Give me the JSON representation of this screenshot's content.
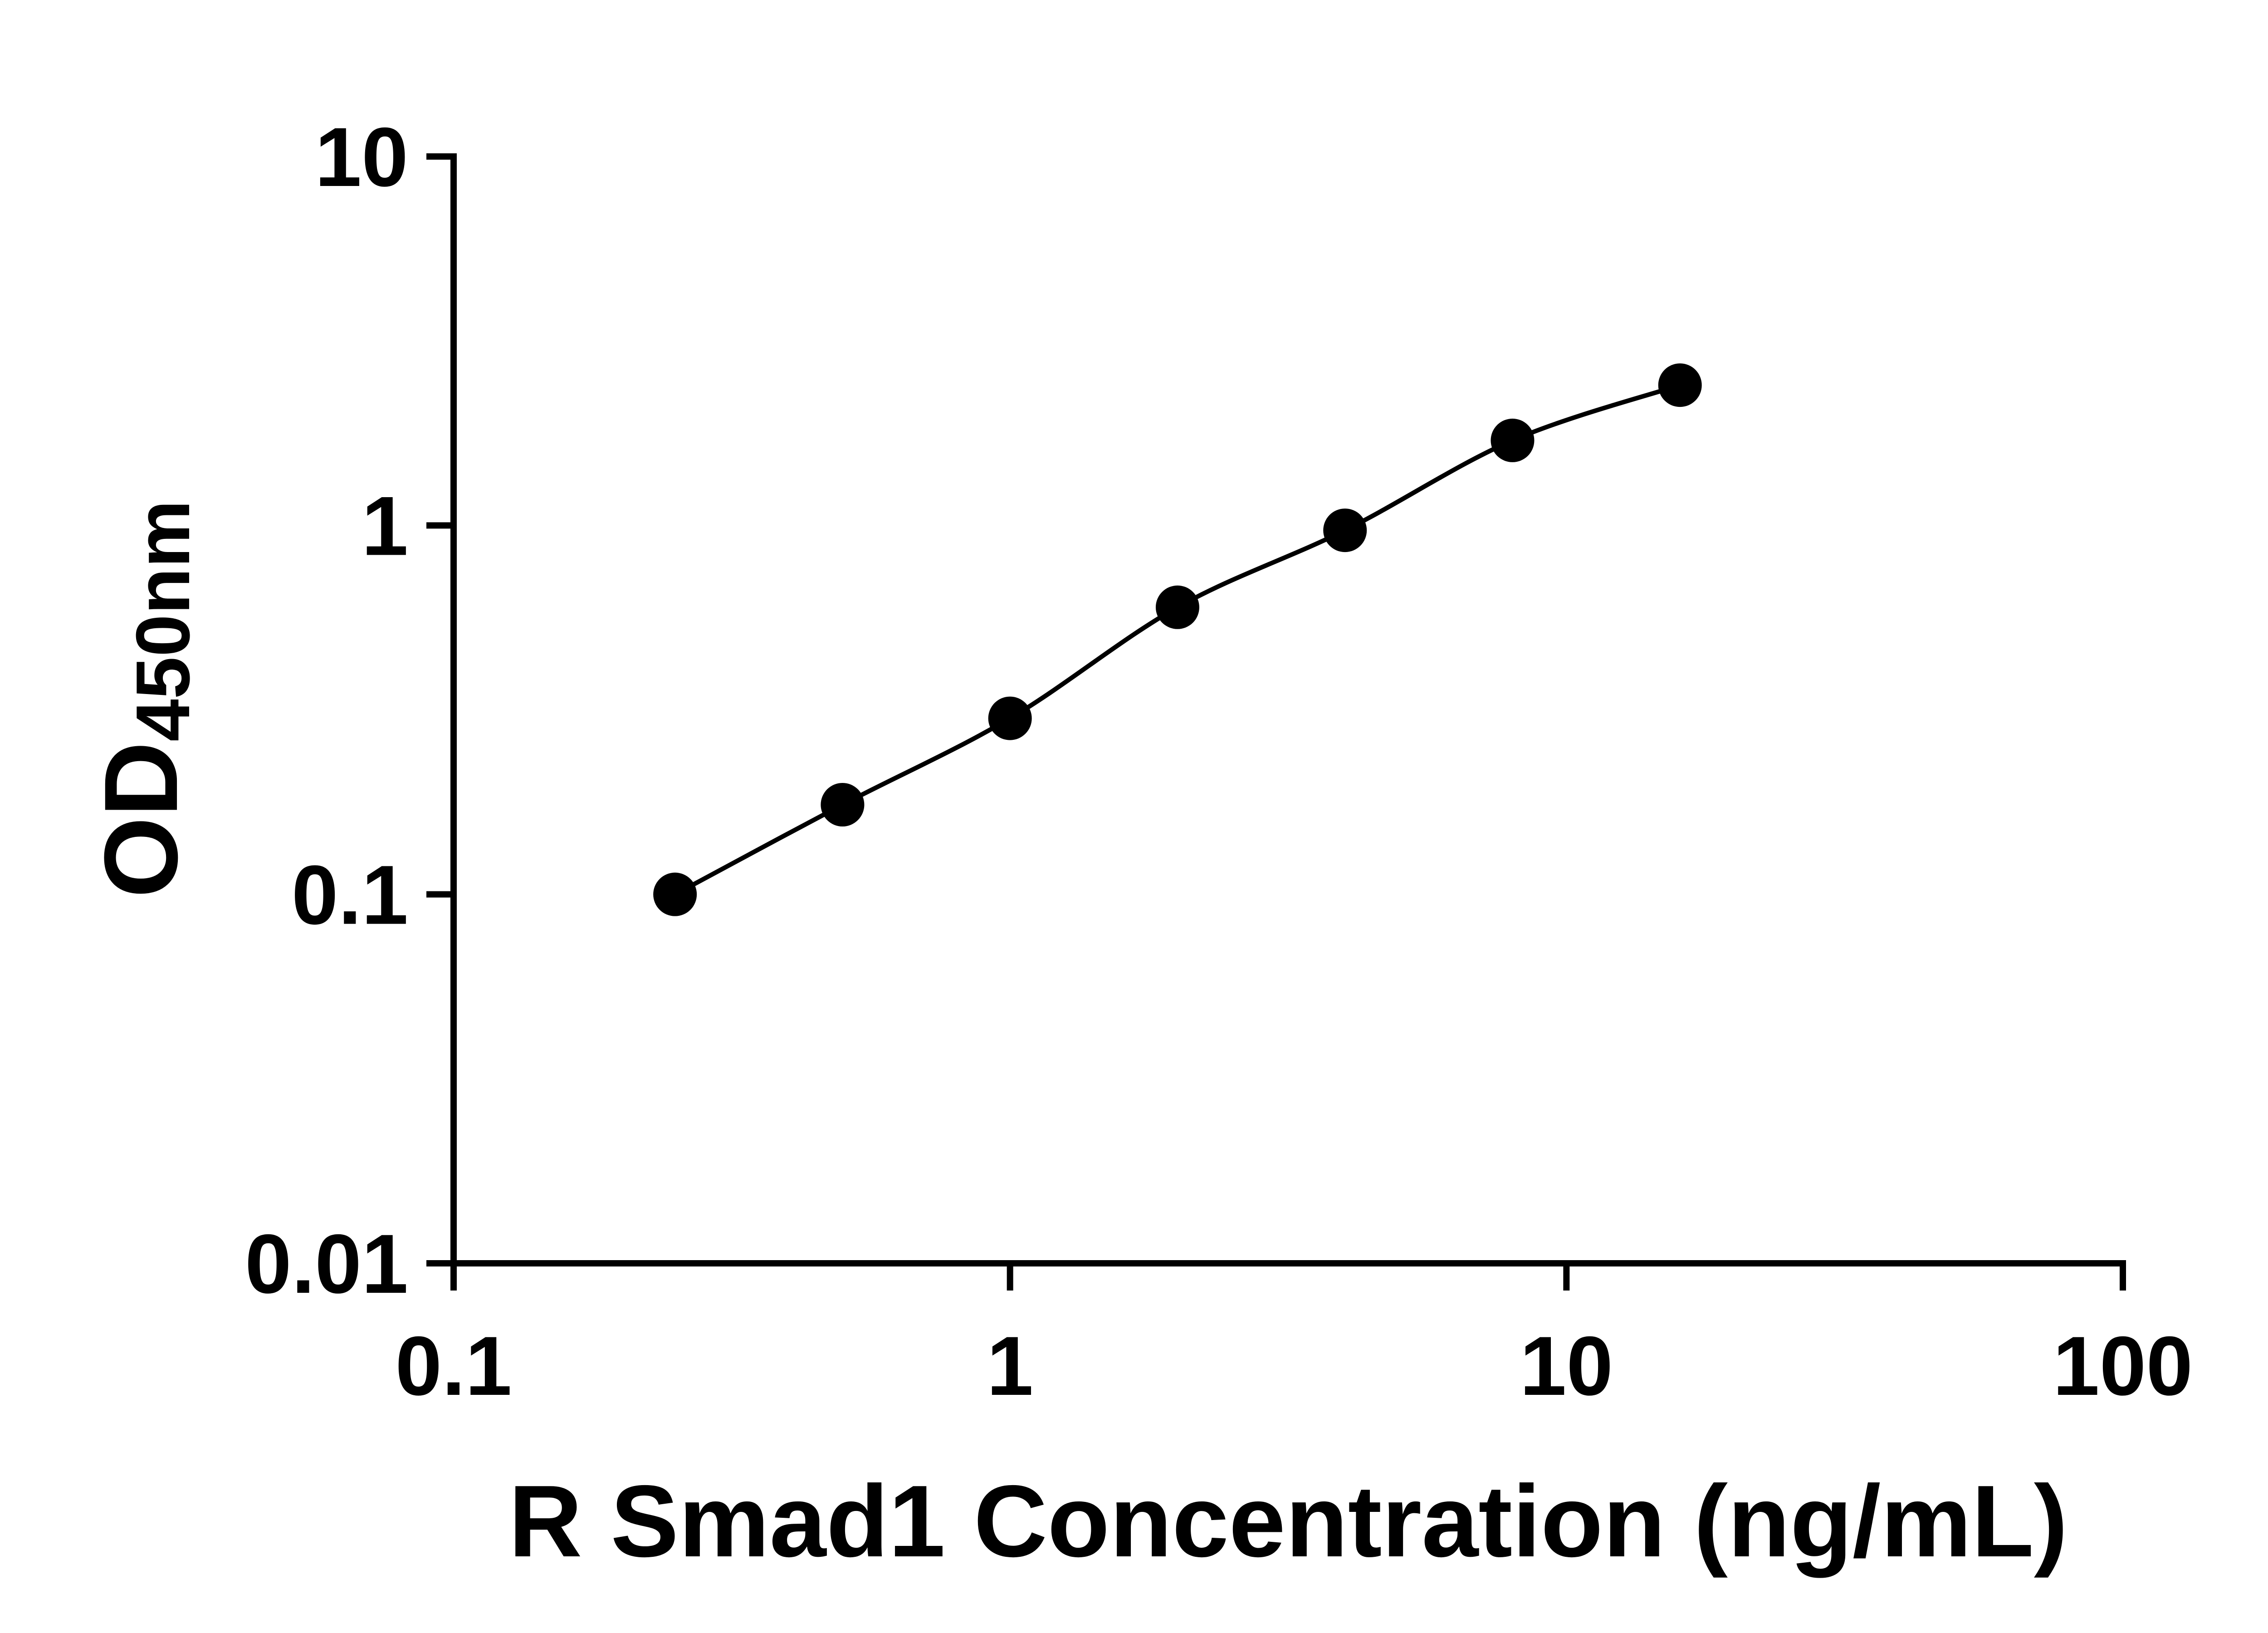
{
  "chart_data": {
    "type": "line",
    "markers": "filled-circle",
    "x": [
      0.25,
      0.5,
      1,
      2,
      4,
      8,
      16
    ],
    "y": [
      0.1,
      0.175,
      0.3,
      0.6,
      0.97,
      1.7,
      2.4
    ],
    "xlabel": "R Smad1 Concentration (ng/mL)",
    "ylabel_main": "OD",
    "ylabel_sub": "450nm",
    "x_scale": "log",
    "y_scale": "log",
    "xlim": [
      0.1,
      100
    ],
    "ylim": [
      0.01,
      10
    ],
    "x_ticks": [
      0.1,
      1,
      10,
      100
    ],
    "x_tick_labels": [
      "0.1",
      "1",
      "10",
      "100"
    ],
    "y_ticks": [
      0.01,
      0.1,
      1,
      10
    ],
    "y_tick_labels": [
      "0.01",
      "0.1",
      "1",
      "10"
    ],
    "grid": false,
    "legend": "none",
    "marker_color": "#000000",
    "line_color": "#000000",
    "axis_color": "#000000",
    "background": "#ffffff"
  }
}
